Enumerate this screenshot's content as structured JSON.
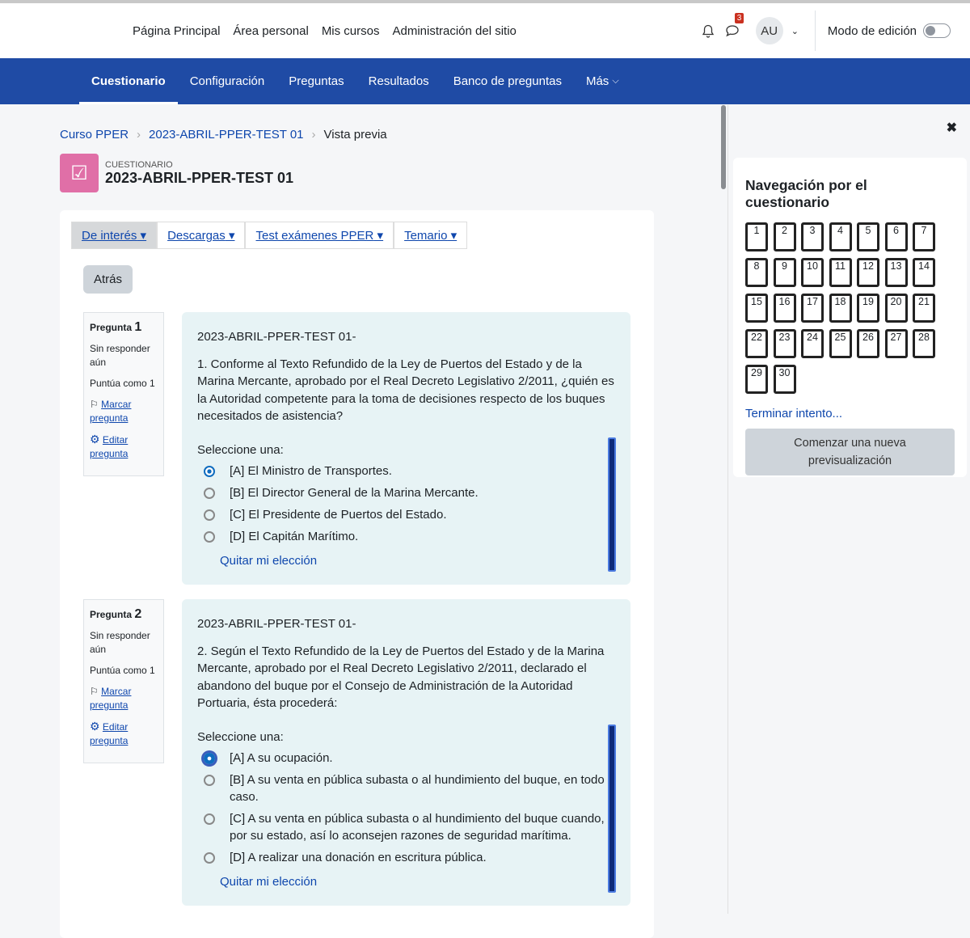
{
  "navbar": {
    "links": [
      "Página Principal",
      "Área personal",
      "Mis cursos",
      "Administración del sitio"
    ],
    "messages_badge": "3",
    "avatar": "AU",
    "edit_mode_label": "Modo de edición",
    "edit_mode_on": false
  },
  "secondary_nav": {
    "tabs": [
      "Cuestionario",
      "Configuración",
      "Preguntas",
      "Resultados",
      "Banco de preguntas",
      "Más"
    ],
    "active": 0
  },
  "breadcrumb": [
    "Curso PPER",
    "2023-ABRIL-PPER-TEST 01",
    "Vista previa"
  ],
  "header": {
    "kind": "CUESTIONARIO",
    "title": "2023-ABRIL-PPER-TEST 01"
  },
  "menus": [
    "De interés",
    "Descargas",
    "Test exámenes PPER",
    "Temario"
  ],
  "back_button": "Atrás",
  "questions": [
    {
      "label": "Pregunta",
      "number": "1",
      "status": "Sin responder aún",
      "score": "Puntúa como 1",
      "flag": "Marcar pregunta",
      "edit": "Editar pregunta",
      "prefix": "2023-ABRIL-PPER-TEST 01-",
      "text": "1. Conforme al Texto Refundido de la Ley de Puertos del Estado y de la Marina Mercante, aprobado por el Real Decreto Legislativo 2/2011, ¿quién es la Autoridad competente para la toma de decisiones respecto de los buques necesitados de asistencia?",
      "select_label": "Seleccione una:",
      "answers": [
        "[A] El Ministro de Transportes.",
        "[B] El Director General de la Marina Mercante.",
        "[C] El Presidente de Puertos del Estado.",
        "[D] El Capitán Marítimo."
      ],
      "selected": 0,
      "clear": "Quitar mi elección"
    },
    {
      "label": "Pregunta",
      "number": "2",
      "status": "Sin responder aún",
      "score": "Puntúa como 1",
      "flag": "Marcar pregunta",
      "edit": "Editar pregunta",
      "prefix": "2023-ABRIL-PPER-TEST 01-",
      "text": "2. Según el Texto Refundido de la Ley de Puertos del Estado y de la Marina Mercante, aprobado por el Real Decreto Legislativo 2/2011, declarado el abandono del buque por el Consejo de Administración de la Autoridad Portuaria, ésta procederá:",
      "select_label": "Seleccione una:",
      "answers": [
        "[A] A su ocupación.",
        "[B] A su venta en pública subasta o al hundimiento del buque, en todo caso.",
        "[C] A su venta en pública subasta o al hundimiento del buque cuando, por su estado, así lo aconsejen razones de seguridad marítima.",
        "[D] A realizar una donación en escritura pública."
      ],
      "selected": 0,
      "clear": "Quitar mi elección"
    }
  ],
  "quiz_nav": {
    "title": "Navegación por el cuestionario",
    "buttons": [
      "1",
      "2",
      "3",
      "4",
      "5",
      "6",
      "7",
      "8",
      "9",
      "10",
      "11",
      "12",
      "13",
      "14",
      "15",
      "16",
      "17",
      "18",
      "19",
      "20",
      "21",
      "22",
      "23",
      "24",
      "25",
      "26",
      "27",
      "28",
      "29",
      "30"
    ],
    "finish": "Terminar intento...",
    "new_preview": "Comenzar una nueva previsualización"
  },
  "colors": {
    "primary_nav": "#1f4ba5",
    "link": "#0f47ad",
    "quiz_icon": "#e06fa7",
    "badge": "#ca3120"
  }
}
